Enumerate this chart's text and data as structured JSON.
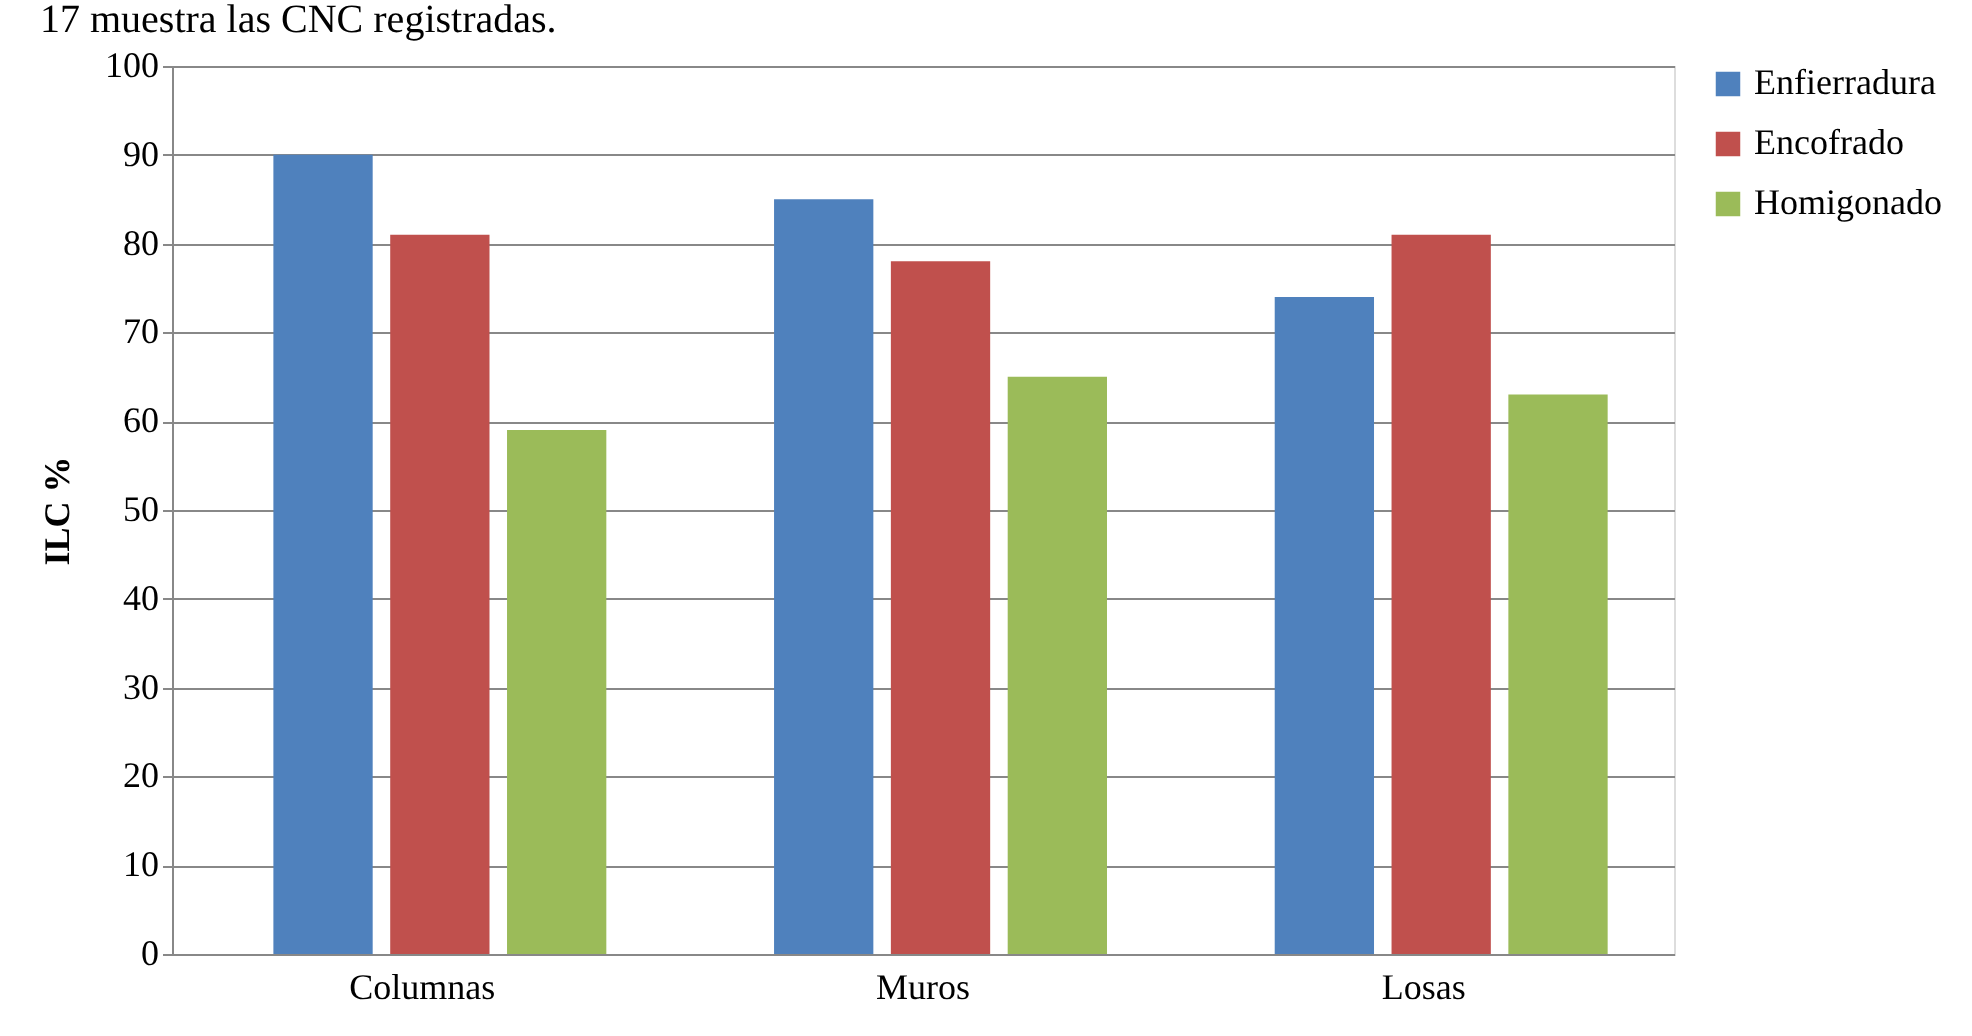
{
  "chart_data": {
    "type": "bar",
    "ylabel": "ILC %",
    "categories": [
      "Columnas",
      "Muros",
      "Losas"
    ],
    "series": [
      {
        "name": "Enfierradura",
        "color": "#4f81bd",
        "values": [
          90,
          85,
          74
        ]
      },
      {
        "name": "Encofrado",
        "color": "#c0504d",
        "values": [
          81,
          78,
          81
        ]
      },
      {
        "name": "Homigonado",
        "color": "#9bbb59",
        "values": [
          59,
          65,
          63
        ]
      }
    ],
    "ylim": [
      0,
      100
    ],
    "yticks": [
      0,
      10,
      20,
      30,
      40,
      50,
      60,
      70,
      80,
      90,
      100
    ],
    "grid": "y",
    "legend": "right",
    "annotations": [
      "17 muestra las CNC registradas."
    ]
  }
}
